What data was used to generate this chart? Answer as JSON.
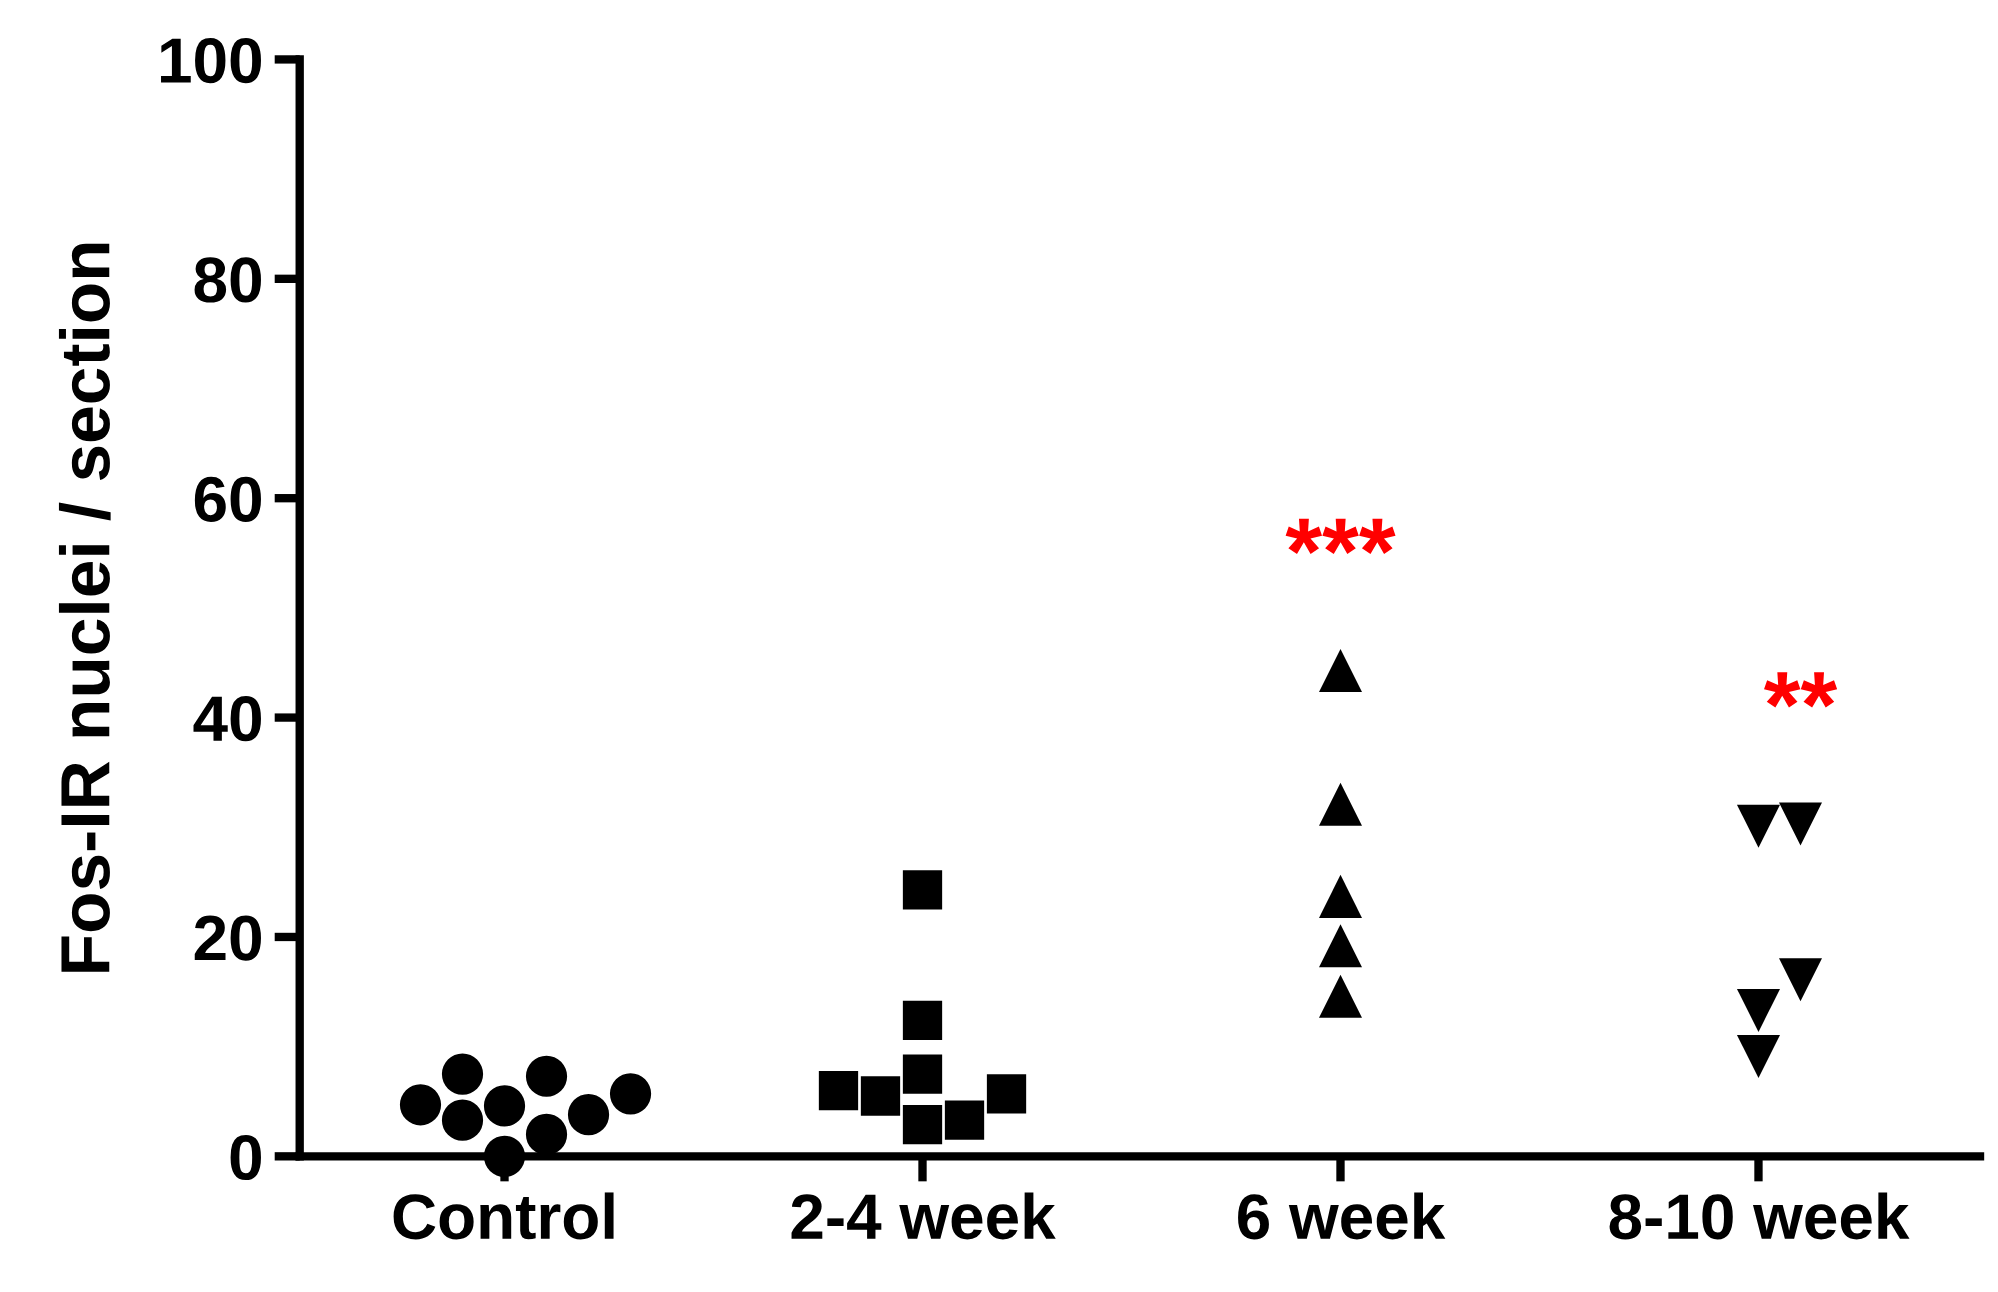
{
  "chart_data": {
    "type": "scatter",
    "ylabel": "Fos-IR nuclei / section",
    "categories": [
      "Control",
      "2-4 week",
      "6 week",
      "8-10 week"
    ],
    "ylim": [
      0,
      100
    ],
    "yticks": [
      0,
      20,
      40,
      60,
      80,
      100
    ],
    "grid": false,
    "series": [
      {
        "color": "#000000",
        "marker": "circle",
        "x": [
          "Control",
          "Control",
          "Control",
          "Control",
          "Control",
          "Control",
          "Control",
          "Control",
          "Control"
        ],
        "values": [
          4.6,
          3.3,
          5.7,
          7.5,
          0,
          2,
          7.3,
          3.8,
          4.7
        ]
      },
      {
        "color": "#000000",
        "marker": "square",
        "x": [
          "2-4 week",
          "2-4 week",
          "2-4 week",
          "2-4 week",
          "2-4 week",
          "2-4 week",
          "2-4 week",
          "2-4 week"
        ],
        "values": [
          6,
          5.7,
          2.9,
          3.3,
          5.5,
          7.5,
          12.4,
          24.3
        ]
      },
      {
        "color": "#000000",
        "marker": "triangle",
        "x": [
          "6 week",
          "6 week",
          "6 week",
          "6 week",
          "6 week"
        ],
        "values": [
          44.3,
          32.1,
          23.7,
          19.2,
          14.6
        ]
      },
      {
        "color": "#000000",
        "marker": "triangle_down",
        "x": [
          "8-10 week",
          "8-10 week",
          "8-10 week",
          "8-10 week",
          "8-10 week"
        ],
        "values": [
          30.1,
          30.3,
          16.1,
          13.3,
          9.1
        ]
      }
    ],
    "annotations": [
      "***",
      "**"
    ]
  }
}
